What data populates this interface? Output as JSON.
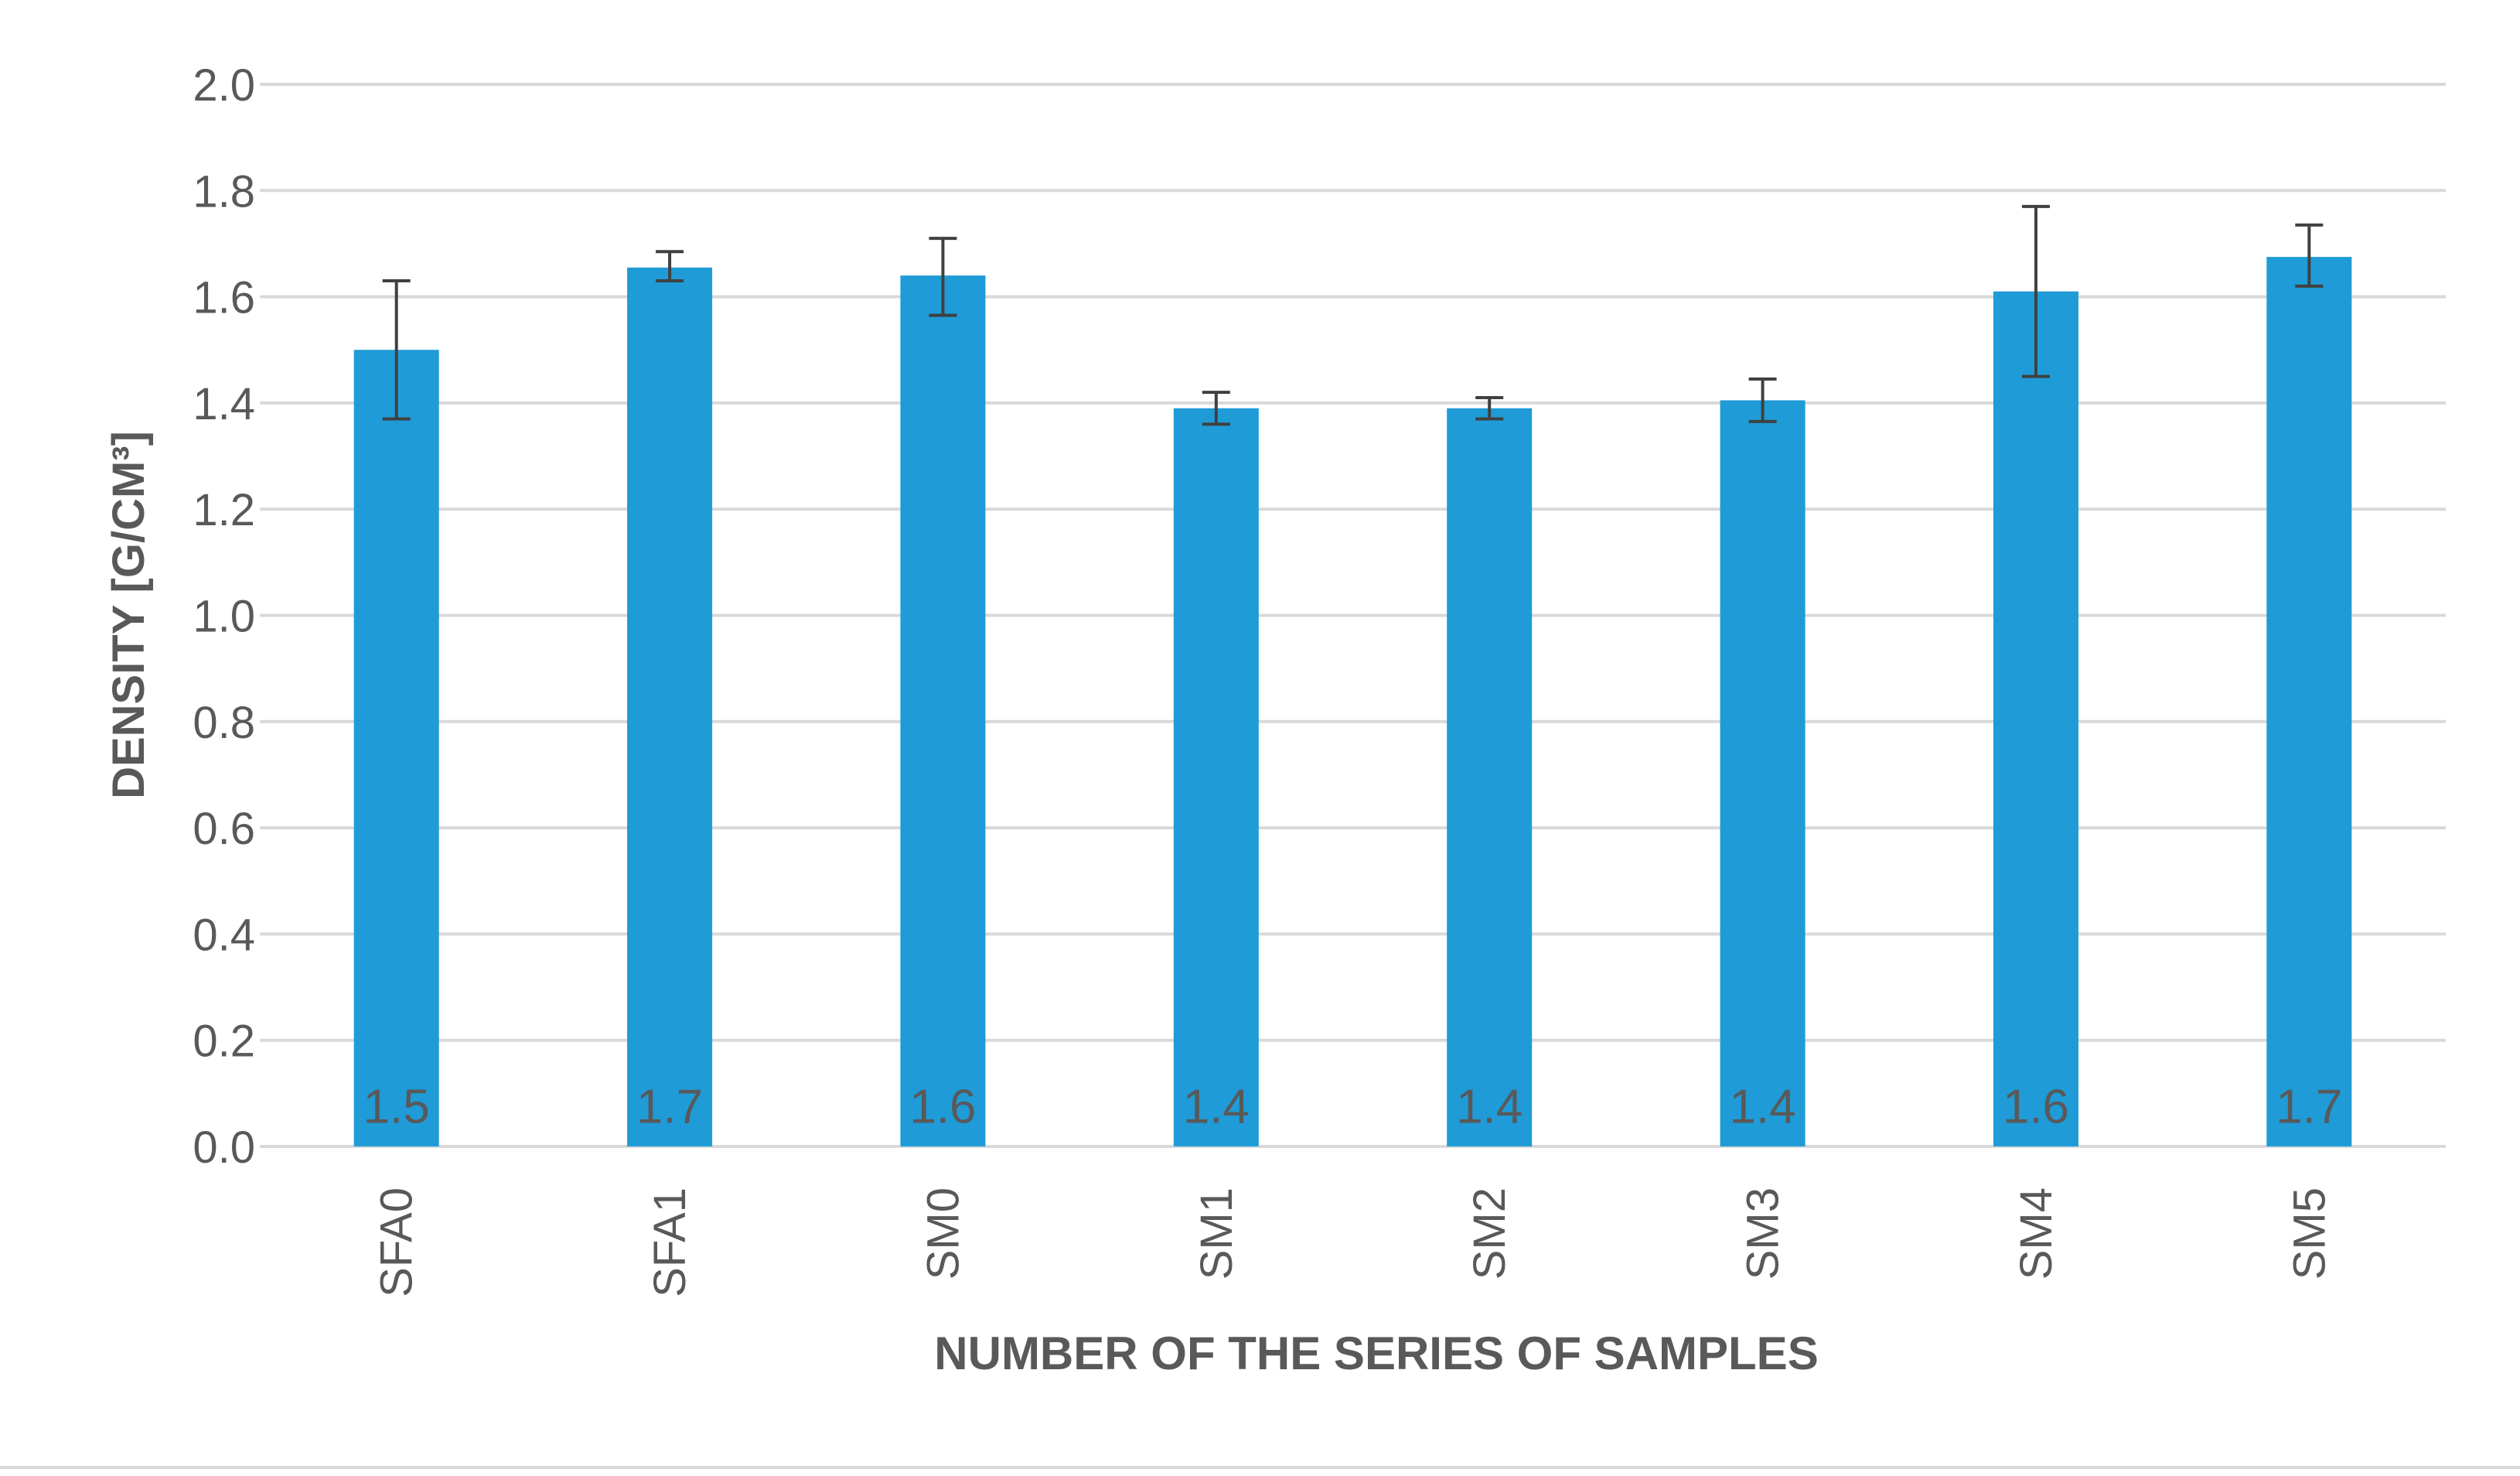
{
  "chart_data": {
    "type": "bar",
    "title": "",
    "xlabel": "NUMBER OF THE SERIES OF SAMPLES",
    "ylabel": "DENSITY [G/CM³]",
    "categories": [
      "SFA0",
      "SFA1",
      "SM0",
      "SM1",
      "SM2",
      "SM3",
      "SM4",
      "SM5"
    ],
    "values": [
      1.5,
      1.655,
      1.64,
      1.39,
      1.39,
      1.405,
      1.61,
      1.675
    ],
    "value_labels": [
      "1.5",
      "1.7",
      "1.6",
      "1.4",
      "1.4",
      "1.4",
      "1.6",
      "1.7"
    ],
    "error_low": [
      1.37,
      1.63,
      1.565,
      1.36,
      1.37,
      1.365,
      1.45,
      1.62
    ],
    "error_high": [
      1.63,
      1.685,
      1.71,
      1.42,
      1.41,
      1.445,
      1.77,
      1.735
    ],
    "ylim": [
      0,
      2.0
    ],
    "yticks": [
      "0.0",
      "0.2",
      "0.4",
      "0.6",
      "0.8",
      "1.0",
      "1.2",
      "1.4",
      "1.6",
      "1.8",
      "2.0"
    ],
    "grid": true,
    "legend": "none",
    "colors": {
      "bar": "#1f9bd7",
      "grid": "#d9d9d9",
      "text": "#595959",
      "error": "#404040",
      "border": "#d9d9d9"
    }
  }
}
